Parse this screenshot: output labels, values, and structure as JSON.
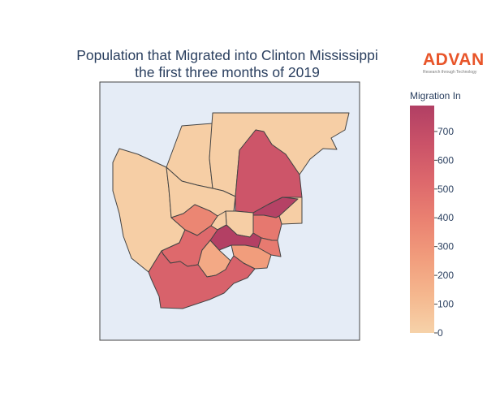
{
  "title_line1": "Population that Migrated into Clinton Mississippi",
  "title_line2": "the first three months of 2019",
  "logo": {
    "word": "ADVAN",
    "tagline": "Research through Technology"
  },
  "colorbar": {
    "title": "Migration In",
    "min": 0,
    "max": 790,
    "ticks": [
      0,
      100,
      200,
      300,
      400,
      500,
      600,
      700
    ],
    "colors": [
      "#f6d2a9",
      "#f5b78e",
      "#f19c7c",
      "#ea8171",
      "#dd686c",
      "#ca5268",
      "#b13f64"
    ]
  },
  "chart_data": {
    "type": "choropleth",
    "title": "Population that Migrated into Clinton Mississippi the first three months of 2019",
    "value_label": "Migration In",
    "regions": [
      {
        "name": "region-1",
        "value": 20
      },
      {
        "name": "region-2",
        "value": 20
      },
      {
        "name": "region-3",
        "value": 20
      },
      {
        "name": "region-4",
        "value": 20
      },
      {
        "name": "region-5",
        "value": 640
      },
      {
        "name": "region-6",
        "value": 20
      },
      {
        "name": "region-7",
        "value": 20
      },
      {
        "name": "region-8",
        "value": 770
      },
      {
        "name": "region-9",
        "value": 20
      },
      {
        "name": "region-10",
        "value": 370
      },
      {
        "name": "region-11",
        "value": 440
      },
      {
        "name": "region-12",
        "value": 780
      },
      {
        "name": "region-13",
        "value": 430
      },
      {
        "name": "region-14",
        "value": 520
      },
      {
        "name": "region-15",
        "value": 260
      },
      {
        "name": "region-16",
        "value": 200
      },
      {
        "name": "region-17",
        "value": 560
      }
    ]
  }
}
